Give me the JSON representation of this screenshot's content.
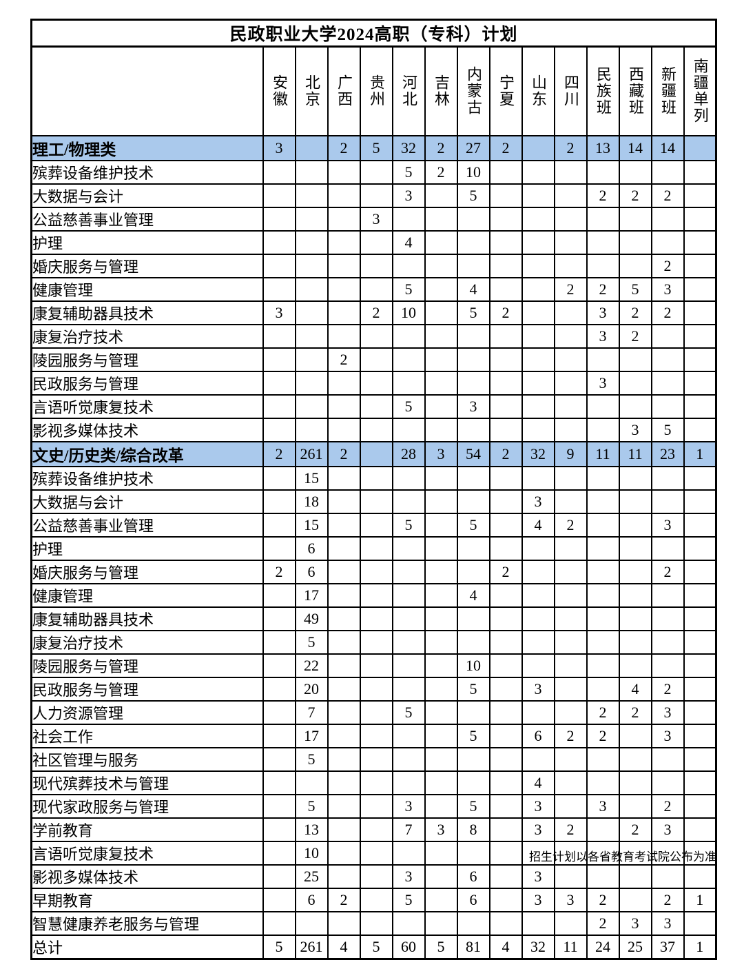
{
  "title": "民政职业大学2024高职（专科）计划",
  "footer_note": "招生计划以各省教育考试院公布为准",
  "colors": {
    "section_row_bg": "#aac9ec",
    "border": "#000000",
    "background": "#ffffff"
  },
  "columns": [
    "安徽",
    "北京",
    "广西",
    "贵州",
    "河北",
    "吉林",
    "内蒙古",
    "宁夏",
    "山东",
    "四川",
    "民族班",
    "西藏班",
    "新疆班",
    "南疆单列"
  ],
  "rows": [
    {
      "label": "理工/物理类",
      "type": "section",
      "values": [
        "3",
        "",
        "2",
        "5",
        "32",
        "2",
        "27",
        "2",
        "",
        "2",
        "13",
        "14",
        "14",
        ""
      ]
    },
    {
      "label": "殡葬设备维护技术",
      "type": "major",
      "values": [
        "",
        "",
        "",
        "",
        "5",
        "2",
        "10",
        "",
        "",
        "",
        "",
        "",
        "",
        ""
      ]
    },
    {
      "label": "大数据与会计",
      "type": "major",
      "values": [
        "",
        "",
        "",
        "",
        "3",
        "",
        "5",
        "",
        "",
        "",
        "2",
        "2",
        "2",
        ""
      ]
    },
    {
      "label": "公益慈善事业管理",
      "type": "major",
      "values": [
        "",
        "",
        "",
        "3",
        "",
        "",
        "",
        "",
        "",
        "",
        "",
        "",
        "",
        ""
      ]
    },
    {
      "label": "护理",
      "type": "major",
      "values": [
        "",
        "",
        "",
        "",
        "4",
        "",
        "",
        "",
        "",
        "",
        "",
        "",
        "",
        ""
      ]
    },
    {
      "label": "婚庆服务与管理",
      "type": "major",
      "values": [
        "",
        "",
        "",
        "",
        "",
        "",
        "",
        "",
        "",
        "",
        "",
        "",
        "2",
        ""
      ]
    },
    {
      "label": "健康管理",
      "type": "major",
      "values": [
        "",
        "",
        "",
        "",
        "5",
        "",
        "4",
        "",
        "",
        "2",
        "2",
        "5",
        "3",
        ""
      ]
    },
    {
      "label": "康复辅助器具技术",
      "type": "major",
      "values": [
        "3",
        "",
        "",
        "2",
        "10",
        "",
        "5",
        "2",
        "",
        "",
        "3",
        "2",
        "2",
        ""
      ]
    },
    {
      "label": "康复治疗技术",
      "type": "major",
      "values": [
        "",
        "",
        "",
        "",
        "",
        "",
        "",
        "",
        "",
        "",
        "3",
        "2",
        "",
        ""
      ]
    },
    {
      "label": "陵园服务与管理",
      "type": "major",
      "values": [
        "",
        "",
        "2",
        "",
        "",
        "",
        "",
        "",
        "",
        "",
        "",
        "",
        "",
        ""
      ]
    },
    {
      "label": "民政服务与管理",
      "type": "major",
      "values": [
        "",
        "",
        "",
        "",
        "",
        "",
        "",
        "",
        "",
        "",
        "3",
        "",
        "",
        ""
      ]
    },
    {
      "label": "言语听觉康复技术",
      "type": "major",
      "values": [
        "",
        "",
        "",
        "",
        "5",
        "",
        "3",
        "",
        "",
        "",
        "",
        "",
        "",
        ""
      ]
    },
    {
      "label": "影视多媒体技术",
      "type": "major",
      "values": [
        "",
        "",
        "",
        "",
        "",
        "",
        "",
        "",
        "",
        "",
        "",
        "3",
        "5",
        ""
      ]
    },
    {
      "label": "文史/历史类/综合改革",
      "type": "section",
      "values": [
        "2",
        "261",
        "2",
        "",
        "28",
        "3",
        "54",
        "2",
        "32",
        "9",
        "11",
        "11",
        "23",
        "1"
      ]
    },
    {
      "label": "殡葬设备维护技术",
      "type": "major",
      "values": [
        "",
        "15",
        "",
        "",
        "",
        "",
        "",
        "",
        "",
        "",
        "",
        "",
        "",
        ""
      ]
    },
    {
      "label": "大数据与会计",
      "type": "major",
      "values": [
        "",
        "18",
        "",
        "",
        "",
        "",
        "",
        "",
        "3",
        "",
        "",
        "",
        "",
        ""
      ]
    },
    {
      "label": "公益慈善事业管理",
      "type": "major",
      "values": [
        "",
        "15",
        "",
        "",
        "5",
        "",
        "5",
        "",
        "4",
        "2",
        "",
        "",
        "3",
        ""
      ]
    },
    {
      "label": "护理",
      "type": "major",
      "values": [
        "",
        "6",
        "",
        "",
        "",
        "",
        "",
        "",
        "",
        "",
        "",
        "",
        "",
        ""
      ]
    },
    {
      "label": "婚庆服务与管理",
      "type": "major",
      "values": [
        "2",
        "6",
        "",
        "",
        "",
        "",
        "",
        "2",
        "",
        "",
        "",
        "",
        "2",
        ""
      ]
    },
    {
      "label": "健康管理",
      "type": "major",
      "values": [
        "",
        "17",
        "",
        "",
        "",
        "",
        "4",
        "",
        "",
        "",
        "",
        "",
        "",
        ""
      ]
    },
    {
      "label": "康复辅助器具技术",
      "type": "major",
      "values": [
        "",
        "49",
        "",
        "",
        "",
        "",
        "",
        "",
        "",
        "",
        "",
        "",
        "",
        ""
      ]
    },
    {
      "label": "康复治疗技术",
      "type": "major",
      "values": [
        "",
        "5",
        "",
        "",
        "",
        "",
        "",
        "",
        "",
        "",
        "",
        "",
        "",
        ""
      ]
    },
    {
      "label": "陵园服务与管理",
      "type": "major",
      "values": [
        "",
        "22",
        "",
        "",
        "",
        "",
        "10",
        "",
        "",
        "",
        "",
        "",
        "",
        ""
      ]
    },
    {
      "label": "民政服务与管理",
      "type": "major",
      "values": [
        "",
        "20",
        "",
        "",
        "",
        "",
        "5",
        "",
        "3",
        "",
        "",
        "4",
        "2",
        ""
      ]
    },
    {
      "label": "人力资源管理",
      "type": "major",
      "values": [
        "",
        "7",
        "",
        "",
        "5",
        "",
        "",
        "",
        "",
        "",
        "2",
        "2",
        "3",
        ""
      ]
    },
    {
      "label": "社会工作",
      "type": "major",
      "values": [
        "",
        "17",
        "",
        "",
        "",
        "",
        "5",
        "",
        "6",
        "2",
        "2",
        "",
        "3",
        ""
      ]
    },
    {
      "label": "社区管理与服务",
      "type": "major",
      "values": [
        "",
        "5",
        "",
        "",
        "",
        "",
        "",
        "",
        "",
        "",
        "",
        "",
        "",
        ""
      ]
    },
    {
      "label": "现代殡葬技术与管理",
      "type": "major",
      "values": [
        "",
        "",
        "",
        "",
        "",
        "",
        "",
        "",
        "4",
        "",
        "",
        "",
        "",
        ""
      ]
    },
    {
      "label": "现代家政服务与管理",
      "type": "major",
      "values": [
        "",
        "5",
        "",
        "",
        "3",
        "",
        "5",
        "",
        "3",
        "",
        "3",
        "",
        "2",
        ""
      ]
    },
    {
      "label": "学前教育",
      "type": "major",
      "values": [
        "",
        "13",
        "",
        "",
        "7",
        "3",
        "8",
        "",
        "3",
        "2",
        "",
        "2",
        "3",
        ""
      ]
    },
    {
      "label": "言语听觉康复技术",
      "type": "major",
      "values": [
        "",
        "10",
        "",
        "",
        "",
        "",
        "",
        "",
        "",
        "",
        "",
        "",
        "",
        ""
      ]
    },
    {
      "label": "影视多媒体技术",
      "type": "major",
      "values": [
        "",
        "25",
        "",
        "",
        "3",
        "",
        "6",
        "",
        "3",
        "",
        "",
        "",
        "",
        ""
      ]
    },
    {
      "label": "早期教育",
      "type": "major",
      "values": [
        "",
        "6",
        "2",
        "",
        "5",
        "",
        "6",
        "",
        "3",
        "3",
        "2",
        "",
        "2",
        "1"
      ]
    },
    {
      "label": "智慧健康养老服务与管理",
      "type": "major",
      "values": [
        "",
        "",
        "",
        "",
        "",
        "",
        "",
        "",
        "",
        "",
        "2",
        "3",
        "3",
        ""
      ]
    },
    {
      "label": "总计",
      "type": "total",
      "values": [
        "5",
        "261",
        "4",
        "5",
        "60",
        "5",
        "81",
        "4",
        "32",
        "11",
        "24",
        "25",
        "37",
        "1"
      ]
    }
  ]
}
